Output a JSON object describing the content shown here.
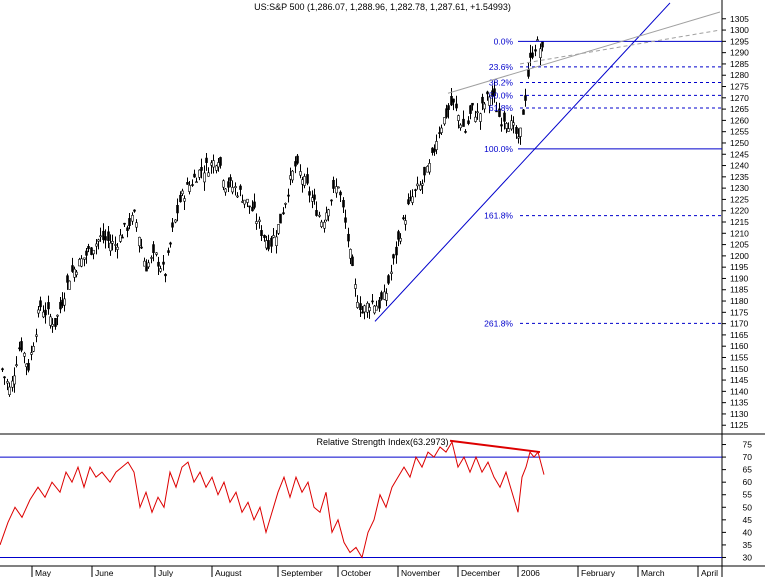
{
  "price_title": "US:S&P 500 (1,286.07, 1,288.96, 1,282.78, 1,287.61, +1.54993)",
  "rsi_title": "Relative Strength Index(63.2973)",
  "colors": {
    "candle": "#000000",
    "fib": "#0000cc",
    "trend": "#0000cc",
    "channel": "#a0a0a0",
    "rsi": "#dd0000",
    "rsi_band": "#0000cc"
  },
  "chart_data": [
    {
      "type": "candlestick",
      "title": "US:S&P 500 (1,286.07, 1,288.96, 1,282.78, 1,287.61, +1.54993)",
      "ylim": [
        1122,
        1308
      ],
      "y_ticks": [
        1125,
        1130,
        1135,
        1140,
        1145,
        1150,
        1155,
        1160,
        1165,
        1170,
        1175,
        1180,
        1185,
        1190,
        1195,
        1200,
        1205,
        1210,
        1215,
        1220,
        1225,
        1230,
        1235,
        1240,
        1245,
        1250,
        1255,
        1260,
        1265,
        1270,
        1275,
        1280,
        1285,
        1290,
        1295,
        1300,
        1305
      ],
      "x_labels": [
        "May",
        "June",
        "July",
        "August",
        "September",
        "October",
        "November",
        "December",
        "2006",
        "February",
        "March",
        "April"
      ],
      "close_path": [
        [
          0,
          1152
        ],
        [
          10,
          1140
        ],
        [
          20,
          1162
        ],
        [
          28,
          1150
        ],
        [
          40,
          1178
        ],
        [
          55,
          1170
        ],
        [
          70,
          1192
        ],
        [
          85,
          1200
        ],
        [
          100,
          1208
        ],
        [
          115,
          1205
        ],
        [
          125,
          1212
        ],
        [
          135,
          1218
        ],
        [
          145,
          1195
        ],
        [
          155,
          1200
        ],
        [
          165,
          1192
        ],
        [
          172,
          1210
        ],
        [
          180,
          1225
        ],
        [
          190,
          1232
        ],
        [
          200,
          1238
        ],
        [
          210,
          1240
        ],
        [
          218,
          1244
        ],
        [
          225,
          1232
        ],
        [
          235,
          1230
        ],
        [
          245,
          1225
        ],
        [
          255,
          1218
        ],
        [
          262,
          1210
        ],
        [
          270,
          1205
        ],
        [
          280,
          1215
        ],
        [
          288,
          1230
        ],
        [
          295,
          1240
        ],
        [
          305,
          1232
        ],
        [
          315,
          1222
        ],
        [
          322,
          1215
        ],
        [
          330,
          1225
        ],
        [
          338,
          1232
        ],
        [
          345,
          1215
        ],
        [
          350,
          1200
        ],
        [
          355,
          1185
        ],
        [
          362,
          1175
        ],
        [
          370,
          1180
        ],
        [
          378,
          1178
        ],
        [
          385,
          1182
        ],
        [
          392,
          1195
        ],
        [
          400,
          1210
        ],
        [
          408,
          1222
        ],
        [
          415,
          1228
        ],
        [
          422,
          1232
        ],
        [
          430,
          1240
        ],
        [
          438,
          1255
        ],
        [
          445,
          1262
        ],
        [
          452,
          1268
        ],
        [
          458,
          1262
        ],
        [
          465,
          1255
        ],
        [
          472,
          1265
        ],
        [
          478,
          1262
        ],
        [
          485,
          1268
        ],
        [
          490,
          1272
        ],
        [
          495,
          1268
        ],
        [
          500,
          1260
        ],
        [
          505,
          1262
        ],
        [
          510,
          1258
        ],
        [
          515,
          1255
        ],
        [
          519,
          1248
        ],
        [
          522,
          1262
        ],
        [
          525,
          1270
        ],
        [
          528,
          1282
        ],
        [
          532,
          1290
        ],
        [
          536,
          1294
        ],
        [
          540,
          1292
        ],
        [
          544,
          1288
        ]
      ],
      "fibonacci": [
        {
          "label": "0.0%",
          "value": 1295
        },
        {
          "label": "23.6%",
          "value": 1283.7
        },
        {
          "label": "38.2%",
          "value": 1276.8
        },
        {
          "label": "50.0%",
          "value": 1271.1
        },
        {
          "label": "61.8%",
          "value": 1265.5
        },
        {
          "label": "100.0%",
          "value": 1247.4
        },
        {
          "label": "161.8%",
          "value": 1217.8
        },
        {
          "label": "261.8%",
          "value": 1170.1
        }
      ],
      "trendline": {
        "from": [
          375,
          1171
        ],
        "to": [
          670,
          1312
        ]
      },
      "channel_line": {
        "from": [
          448,
          1272
        ],
        "to": [
          720,
          1308
        ]
      },
      "channel_dashed": {
        "from": [
          520,
          1285
        ],
        "to": [
          720,
          1300
        ]
      }
    },
    {
      "type": "line",
      "title": "Relative Strength Index(63.2973)",
      "ylim": [
        27,
        78
      ],
      "y_ticks": [
        30,
        35,
        40,
        45,
        50,
        55,
        60,
        65,
        70,
        75
      ],
      "bands": [
        70,
        30
      ],
      "series": [
        {
          "values": [
            [
              0,
              35
            ],
            [
              8,
              44
            ],
            [
              15,
              50
            ],
            [
              22,
              46
            ],
            [
              30,
              53
            ],
            [
              38,
              58
            ],
            [
              45,
              54
            ],
            [
              52,
              60
            ],
            [
              60,
              56
            ],
            [
              66,
              64
            ],
            [
              72,
              60
            ],
            [
              78,
              66
            ],
            [
              84,
              58
            ],
            [
              90,
              66
            ],
            [
              96,
              62
            ],
            [
              102,
              64
            ],
            [
              110,
              60
            ],
            [
              116,
              64
            ],
            [
              122,
              66
            ],
            [
              128,
              68
            ],
            [
              134,
              64
            ],
            [
              140,
              50
            ],
            [
              146,
              56
            ],
            [
              152,
              48
            ],
            [
              158,
              54
            ],
            [
              164,
              50
            ],
            [
              170,
              64
            ],
            [
              176,
              58
            ],
            [
              182,
              66
            ],
            [
              188,
              68
            ],
            [
              194,
              60
            ],
            [
              200,
              64
            ],
            [
              206,
              58
            ],
            [
              212,
              62
            ],
            [
              218,
              55
            ],
            [
              224,
              60
            ],
            [
              230,
              52
            ],
            [
              236,
              56
            ],
            [
              242,
              48
            ],
            [
              248,
              52
            ],
            [
              254,
              45
            ],
            [
              260,
              50
            ],
            [
              266,
              40
            ],
            [
              272,
              48
            ],
            [
              278,
              56
            ],
            [
              284,
              62
            ],
            [
              290,
              54
            ],
            [
              296,
              62
            ],
            [
              302,
              56
            ],
            [
              308,
              60
            ],
            [
              314,
              50
            ],
            [
              320,
              48
            ],
            [
              326,
              56
            ],
            [
              332,
              40
            ],
            [
              338,
              45
            ],
            [
              344,
              36
            ],
            [
              350,
              32
            ],
            [
              356,
              34
            ],
            [
              362,
              30
            ],
            [
              368,
              40
            ],
            [
              374,
              45
            ],
            [
              380,
              55
            ],
            [
              386,
              50
            ],
            [
              392,
              58
            ],
            [
              398,
              62
            ],
            [
              404,
              66
            ],
            [
              410,
              62
            ],
            [
              416,
              70
            ],
            [
              422,
              66
            ],
            [
              428,
              72
            ],
            [
              434,
              70
            ],
            [
              440,
              74
            ],
            [
              446,
              72
            ],
            [
              452,
              76
            ],
            [
              458,
              66
            ],
            [
              464,
              70
            ],
            [
              470,
              64
            ],
            [
              476,
              70
            ],
            [
              482,
              64
            ],
            [
              488,
              68
            ],
            [
              494,
              62
            ],
            [
              500,
              58
            ],
            [
              506,
              64
            ],
            [
              512,
              56
            ],
            [
              518,
              48
            ],
            [
              522,
              62
            ],
            [
              526,
              66
            ],
            [
              530,
              72
            ],
            [
              534,
              70
            ],
            [
              538,
              72
            ],
            [
              544,
              63
            ]
          ]
        }
      ],
      "divergence": {
        "from": [
          450,
          76.5
        ],
        "to": [
          540,
          72
        ]
      }
    }
  ]
}
